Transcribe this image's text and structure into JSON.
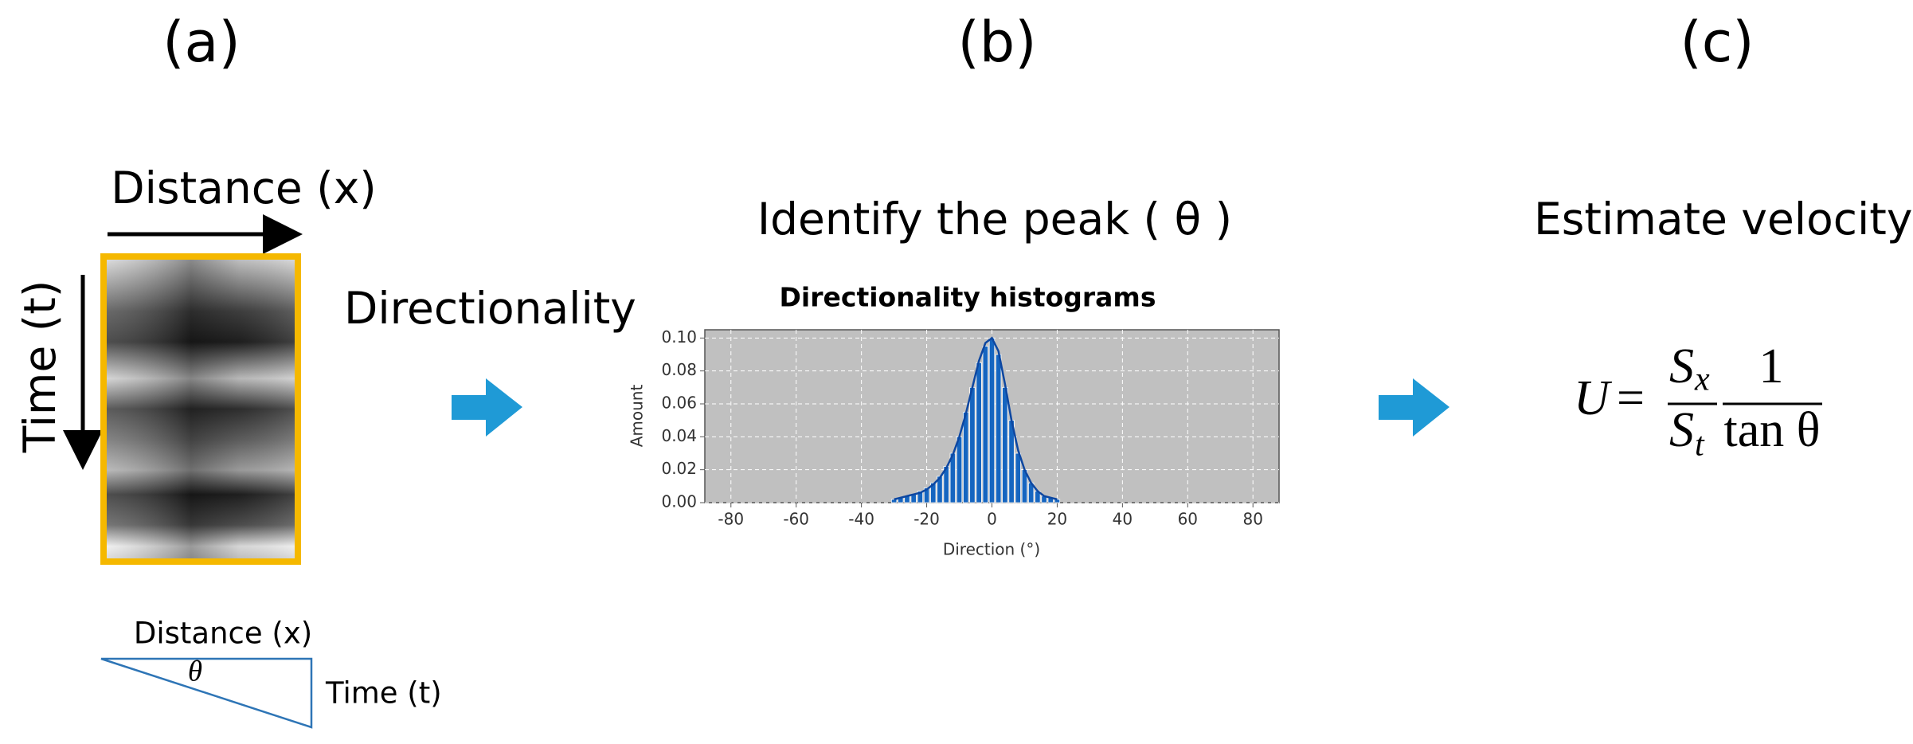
{
  "labels": {
    "a": "(a)",
    "b": "(b)",
    "c": "(c)"
  },
  "panel_a": {
    "distance": "Distance (x)",
    "time": "Time (t)",
    "arrow_label": "Directionality",
    "triangle": {
      "distance": "Distance (x)",
      "angle": "θ",
      "time": "Time (t)"
    }
  },
  "panel_b": {
    "title": "Identify the peak ( θ )",
    "chart_data": {
      "type": "histogram",
      "title": "Directionality histograms",
      "xlabel": "Direction (°)",
      "ylabel": "Amount",
      "x": [
        -30,
        -28,
        -26,
        -24,
        -22,
        -20,
        -18,
        -16,
        -14,
        -12,
        -10,
        -8,
        -6,
        -4,
        -2,
        0,
        2,
        4,
        6,
        8,
        10,
        12,
        14,
        16,
        18,
        20
      ],
      "series": [
        {
          "color": "#1565c0",
          "values": [
            0.002,
            0.003,
            0.004,
            0.005,
            0.007,
            0.009,
            0.012,
            0.016,
            0.022,
            0.03,
            0.04,
            0.055,
            0.07,
            0.085,
            0.095,
            0.1,
            0.09,
            0.07,
            0.05,
            0.03,
            0.02,
            0.012,
            0.007,
            0.004,
            0.003,
            0.002
          ]
        },
        {
          "type": "line",
          "color": "#0d47a1",
          "values": [
            0.002,
            0.003,
            0.004,
            0.005,
            0.006,
            0.008,
            0.011,
            0.015,
            0.021,
            0.029,
            0.04,
            0.054,
            0.07,
            0.086,
            0.097,
            0.1,
            0.092,
            0.072,
            0.05,
            0.032,
            0.02,
            0.012,
            0.007,
            0.004,
            0.003,
            0.002
          ]
        }
      ],
      "xlim": [
        -88,
        88
      ],
      "xticks": [
        -80,
        -60,
        -40,
        -20,
        0,
        20,
        40,
        60,
        80
      ],
      "ylim": [
        0,
        0.105
      ],
      "yticks": [
        {
          "value": 0,
          "label": "0.00"
        },
        {
          "value": 0.02,
          "label": "0.02"
        },
        {
          "value": 0.04,
          "label": "0.04"
        },
        {
          "value": 0.06,
          "label": "0.06"
        },
        {
          "value": 0.08,
          "label": "0.08"
        },
        {
          "value": 0.1,
          "label": "0.10"
        }
      ],
      "grid": true
    }
  },
  "panel_c": {
    "title": "Estimate velocity",
    "formula": {
      "lhs": "U",
      "eq": "=",
      "num1": "S",
      "num1_sub": "x",
      "den1": "S",
      "den1_sub": "t",
      "num2": "1",
      "den2": "tan θ"
    }
  }
}
